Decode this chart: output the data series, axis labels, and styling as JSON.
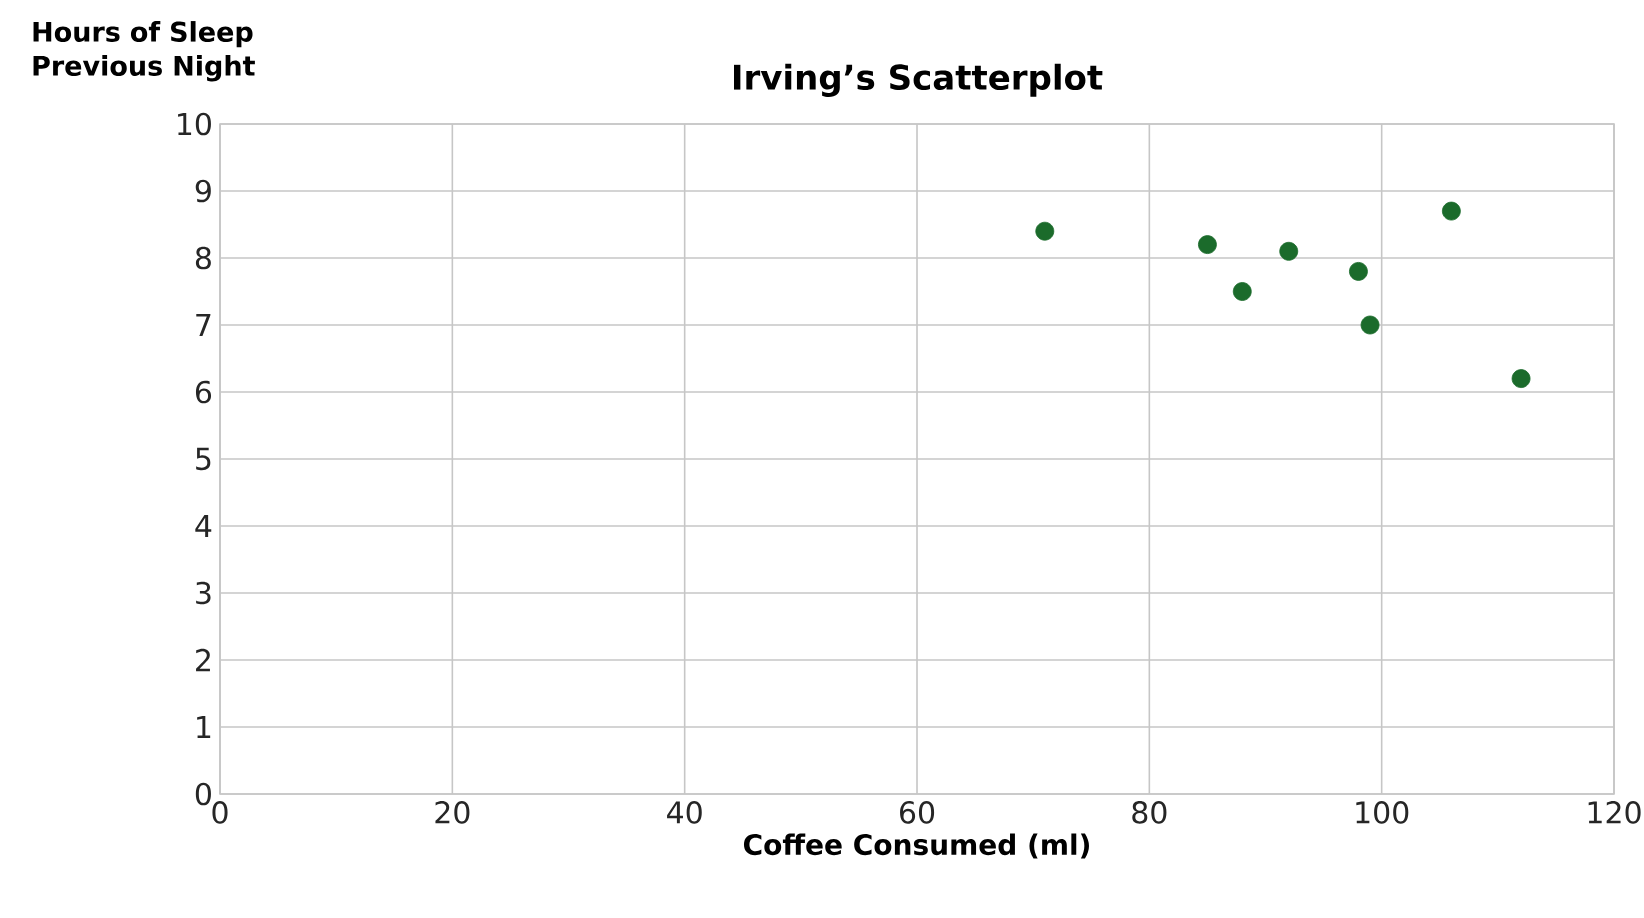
{
  "chart_data": {
    "type": "scatter",
    "title": "Irving’s Scatterplot",
    "xlabel": "Coffee Consumed (ml)",
    "ylabel": "Hours of Sleep Previous Night",
    "x": [
      71,
      85,
      88,
      92,
      98,
      99,
      106,
      112
    ],
    "values": [
      8.4,
      8.2,
      7.5,
      8.1,
      7.8,
      7.0,
      8.7,
      6.2
    ],
    "color": "#1b6b2b",
    "xlim": [
      0,
      120
    ],
    "xticks": [
      0,
      20,
      40,
      60,
      80,
      100,
      120
    ],
    "ylim": [
      0,
      10
    ],
    "yticks": [
      0,
      1,
      2,
      3,
      4,
      5,
      6,
      7,
      8,
      9,
      10
    ],
    "grid": true
  }
}
